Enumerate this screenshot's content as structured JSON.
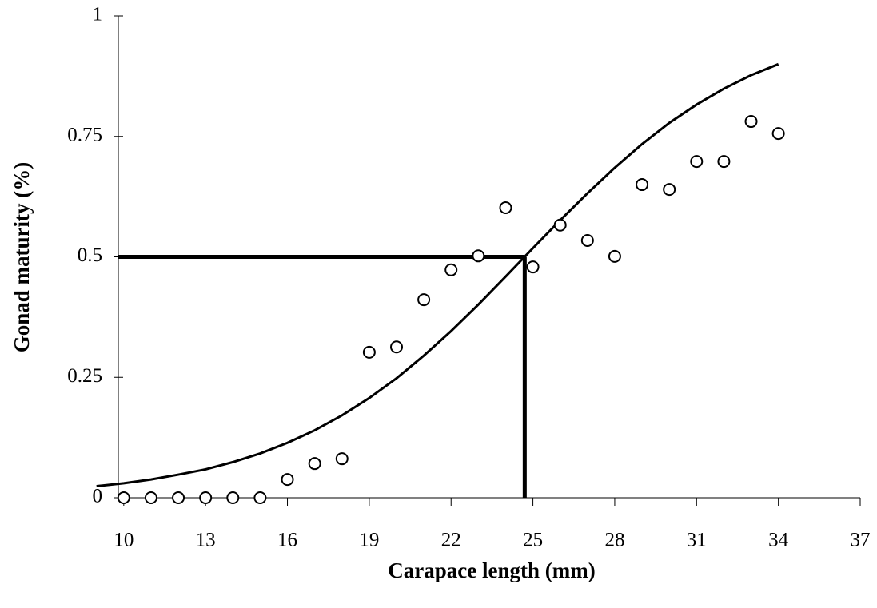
{
  "chart_data": {
    "type": "scatter",
    "x_label": "Carapace length (mm)",
    "y_label": "Gonad maturity (%)",
    "xlim": [
      9.8,
      37
    ],
    "ylim": [
      0,
      1
    ],
    "xticks": [
      10,
      13,
      16,
      19,
      22,
      25,
      28,
      31,
      34,
      37
    ],
    "yticks": [
      0,
      0.25,
      0.5,
      0.75,
      1
    ],
    "color": "#000000",
    "points": {
      "x": [
        10,
        11,
        12,
        13,
        14,
        15,
        16,
        17,
        18,
        19,
        20,
        21,
        22,
        23,
        24,
        25,
        26,
        27,
        28,
        29,
        30,
        31,
        32,
        33,
        34
      ],
      "values": [
        0,
        0,
        0,
        0,
        0,
        0,
        0.038,
        0.071,
        0.081,
        0.302,
        0.313,
        0.411,
        0.473,
        0.502,
        0.602,
        0.479,
        0.566,
        0.534,
        0.501,
        0.65,
        0.64,
        0.698,
        0.698,
        0.781,
        0.756
      ]
    },
    "curve": {
      "x": [
        9,
        10,
        11,
        12,
        13,
        14,
        15,
        16,
        17,
        18,
        19,
        20,
        21,
        22,
        23,
        24,
        25,
        26,
        27,
        28,
        29,
        30,
        31,
        32,
        33,
        34
      ],
      "values": [
        0.024,
        0.03,
        0.038,
        0.048,
        0.059,
        0.074,
        0.092,
        0.114,
        0.14,
        0.171,
        0.207,
        0.248,
        0.295,
        0.346,
        0.401,
        0.459,
        0.518,
        0.576,
        0.632,
        0.685,
        0.734,
        0.778,
        0.816,
        0.849,
        0.877,
        0.9
      ]
    },
    "reference": {
      "x": 24.7,
      "y": 0.5
    }
  }
}
